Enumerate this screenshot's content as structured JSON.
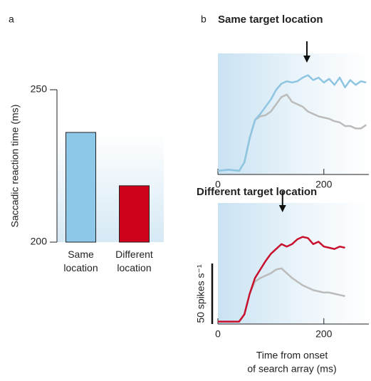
{
  "chart_data": [
    {
      "type": "bar",
      "panel_label": "a",
      "ylabel": "Saccadic reaction time (ms)",
      "categories": [
        "Same location",
        "Different location"
      ],
      "values": [
        236,
        218.5
      ],
      "colors": [
        "#8ec8e8",
        "#d0021b"
      ],
      "ylim": [
        200,
        250
      ],
      "yticks": [
        200,
        250
      ]
    },
    {
      "type": "line",
      "panel_label": "b",
      "title": "Same target location",
      "x": [
        0,
        20,
        40,
        50,
        60,
        70,
        80,
        90,
        100,
        110,
        120,
        130,
        140,
        150,
        160,
        170,
        180,
        190,
        200,
        210,
        220,
        230,
        240,
        250,
        260,
        270,
        280
      ],
      "series": [
        {
          "color": "#bbbbbb",
          "values": [
            3,
            4,
            3,
            10,
            30,
            45,
            48,
            49,
            52,
            58,
            64,
            66,
            60,
            58,
            56,
            52,
            50,
            48,
            47,
            46,
            44,
            43,
            40,
            40,
            38,
            38,
            41
          ]
        },
        {
          "color": "#8ec5e0",
          "values": [
            3,
            4,
            3,
            10,
            30,
            45,
            50,
            56,
            62,
            70,
            75,
            77,
            76,
            77,
            80,
            82,
            78,
            80,
            76,
            79,
            74,
            80,
            72,
            78,
            74,
            77,
            76
          ]
        }
      ],
      "annotation_arrow_x": 168,
      "xlim": [
        0,
        285
      ],
      "xticks": [
        0,
        200
      ],
      "ylim": [
        0,
        100
      ]
    },
    {
      "type": "line",
      "title": "Different target location",
      "x": [
        0,
        20,
        40,
        50,
        60,
        70,
        80,
        90,
        100,
        110,
        120,
        130,
        140,
        150,
        160,
        170,
        180,
        190,
        200,
        210,
        220,
        230,
        240
      ],
      "series": [
        {
          "color": "#bbbbbb",
          "values": [
            2,
            2,
            2,
            8,
            25,
            35,
            38,
            40,
            42,
            45,
            46,
            42,
            38,
            35,
            32,
            30,
            28,
            27,
            26,
            26,
            25,
            24,
            23
          ]
        },
        {
          "color": "#c8102e",
          "values": [
            2,
            2,
            2,
            8,
            25,
            38,
            45,
            52,
            58,
            62,
            66,
            64,
            66,
            70,
            72,
            71,
            66,
            68,
            64,
            63,
            62,
            64,
            63
          ]
        }
      ],
      "annotation_arrow_x": 122,
      "scale_bar": {
        "value": 50,
        "label": "50 spikes s⁻¹"
      },
      "xlabel": [
        "Time from onset",
        "of search array (ms)"
      ],
      "xlim": [
        0,
        285
      ],
      "xticks": [
        0,
        200
      ],
      "ylim": [
        0,
        100
      ]
    }
  ]
}
